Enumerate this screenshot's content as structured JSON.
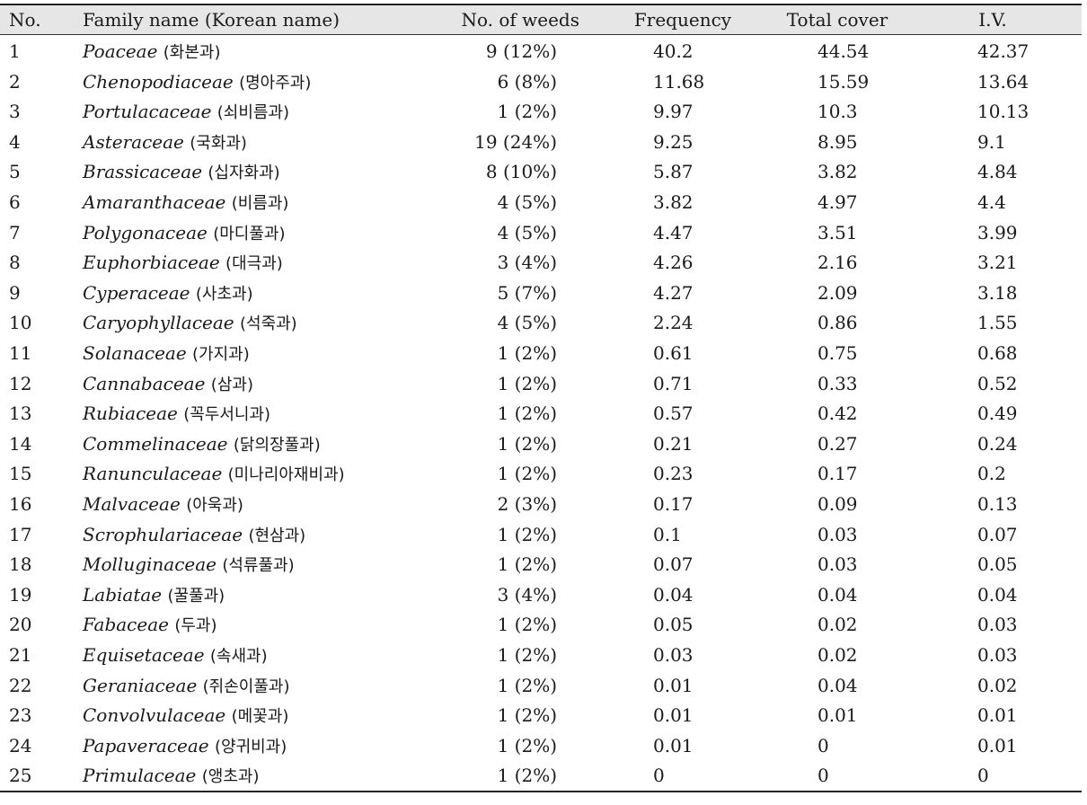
{
  "table": {
    "headers": {
      "no": "No.",
      "family": "Family name (Korean name)",
      "weeds": "No. of weeds",
      "frequency": "Frequency",
      "total_cover": "Total cover",
      "iv": "I.V."
    },
    "rows": [
      {
        "no": "1",
        "latin": "Poaceae",
        "korean": "(화본과)",
        "weeds": "9 (12%)",
        "frequency": "40.2",
        "total_cover": "44.54",
        "iv": "42.37"
      },
      {
        "no": "2",
        "latin": "Chenopodiaceae",
        "korean": "(명아주과)",
        "weeds": "6 (8%)",
        "frequency": "11.68",
        "total_cover": "15.59",
        "iv": "13.64"
      },
      {
        "no": "3",
        "latin": "Portulacaceae",
        "korean": "(쇠비름과)",
        "weeds": "1 (2%)",
        "frequency": "9.97",
        "total_cover": "10.3",
        "iv": "10.13"
      },
      {
        "no": "4",
        "latin": "Asteraceae",
        "korean": "(국화과)",
        "weeds": "19 (24%)",
        "frequency": "9.25",
        "total_cover": "8.95",
        "iv": "9.1"
      },
      {
        "no": "5",
        "latin": "Brassicaceae",
        "korean": "(십자화과)",
        "weeds": "8 (10%)",
        "frequency": "5.87",
        "total_cover": "3.82",
        "iv": "4.84"
      },
      {
        "no": "6",
        "latin": "Amaranthaceae",
        "korean": "(비름과)",
        "weeds": "4 (5%)",
        "frequency": "3.82",
        "total_cover": "4.97",
        "iv": "4.4"
      },
      {
        "no": "7",
        "latin": "Polygonaceae",
        "korean": "(마디풀과)",
        "weeds": "4 (5%)",
        "frequency": "4.47",
        "total_cover": "3.51",
        "iv": "3.99"
      },
      {
        "no": "8",
        "latin": "Euphorbiaceae",
        "korean": "(대극과)",
        "weeds": "3 (4%)",
        "frequency": "4.26",
        "total_cover": "2.16",
        "iv": "3.21"
      },
      {
        "no": "9",
        "latin": "Cyperaceae",
        "korean": "(사초과)",
        "weeds": "5 (7%)",
        "frequency": "4.27",
        "total_cover": "2.09",
        "iv": "3.18"
      },
      {
        "no": "10",
        "latin": "Caryophyllaceae",
        "korean": "(석죽과)",
        "weeds": "4 (5%)",
        "frequency": "2.24",
        "total_cover": "0.86",
        "iv": "1.55"
      },
      {
        "no": "11",
        "latin": "Solanaceae",
        "korean": "(가지과)",
        "weeds": "1 (2%)",
        "frequency": "0.61",
        "total_cover": "0.75",
        "iv": "0.68"
      },
      {
        "no": "12",
        "latin": "Cannabaceae",
        "korean": "(삼과)",
        "weeds": "1 (2%)",
        "frequency": "0.71",
        "total_cover": "0.33",
        "iv": "0.52"
      },
      {
        "no": "13",
        "latin": "Rubiaceae",
        "korean": "(꼭두서니과)",
        "weeds": "1 (2%)",
        "frequency": "0.57",
        "total_cover": "0.42",
        "iv": "0.49"
      },
      {
        "no": "14",
        "latin": "Commelinaceae",
        "korean": "(닭의장풀과)",
        "weeds": "1 (2%)",
        "frequency": "0.21",
        "total_cover": "0.27",
        "iv": "0.24"
      },
      {
        "no": "15",
        "latin": "Ranunculaceae",
        "korean": "(미나리아재비과)",
        "weeds": "1 (2%)",
        "frequency": "0.23",
        "total_cover": "0.17",
        "iv": "0.2"
      },
      {
        "no": "16",
        "latin": "Malvaceae",
        "korean": "(아욱과)",
        "weeds": "2 (3%)",
        "frequency": "0.17",
        "total_cover": "0.09",
        "iv": "0.13"
      },
      {
        "no": "17",
        "latin": "Scrophulariaceae",
        "korean": "(현삼과)",
        "weeds": "1 (2%)",
        "frequency": "0.1",
        "total_cover": "0.03",
        "iv": "0.07"
      },
      {
        "no": "18",
        "latin": "Molluginaceae",
        "korean": "(석류풀과)",
        "weeds": "1 (2%)",
        "frequency": "0.07",
        "total_cover": "0.03",
        "iv": "0.05"
      },
      {
        "no": "19",
        "latin": "Labiatae",
        "korean": "(꿀풀과)",
        "weeds": "3 (4%)",
        "frequency": "0.04",
        "total_cover": "0.04",
        "iv": "0.04"
      },
      {
        "no": "20",
        "latin": "Fabaceae",
        "korean": "(두과)",
        "weeds": "1 (2%)",
        "frequency": "0.05",
        "total_cover": "0.02",
        "iv": "0.03"
      },
      {
        "no": "21",
        "latin": "Equisetaceae",
        "korean": "(속새과)",
        "weeds": "1 (2%)",
        "frequency": "0.03",
        "total_cover": "0.02",
        "iv": "0.03"
      },
      {
        "no": "22",
        "latin": "Geraniaceae",
        "korean": "(쥐손이풀과)",
        "weeds": "1 (2%)",
        "frequency": "0.01",
        "total_cover": "0.04",
        "iv": "0.02"
      },
      {
        "no": "23",
        "latin": "Convolvulaceae",
        "korean": "(메꽃과)",
        "weeds": "1 (2%)",
        "frequency": "0.01",
        "total_cover": "0.01",
        "iv": "0.01"
      },
      {
        "no": "24",
        "latin": "Papaveraceae",
        "korean": "(양귀비과)",
        "weeds": "1 (2%)",
        "frequency": "0.01",
        "total_cover": "0",
        "iv": "0.01"
      },
      {
        "no": "25",
        "latin": "Primulaceae",
        "korean": "(앵초과)",
        "weeds": "1 (2%)",
        "frequency": "0",
        "total_cover": "0",
        "iv": "0"
      }
    ]
  }
}
